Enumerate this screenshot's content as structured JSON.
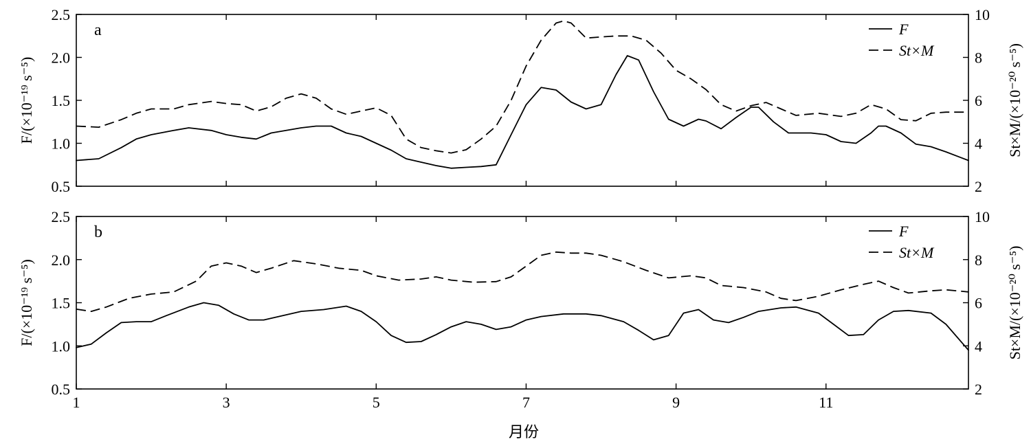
{
  "chart_data": [
    {
      "type": "line",
      "panel_label": "a",
      "xlim": [
        1,
        12.9
      ],
      "xticks": [
        1,
        3,
        5,
        7,
        9,
        11
      ],
      "ylabel": "F/(×10⁻¹⁹ s⁻⁵)",
      "ylim": [
        0.5,
        2.5
      ],
      "yticks": [
        "0.5",
        "1.0",
        "1.5",
        "2.0",
        "2.5"
      ],
      "y2label": "St×M/(×10⁻²⁰ s⁻⁵)",
      "y2lim": [
        2,
        10
      ],
      "y2ticks": [
        "2",
        "4",
        "6",
        "8",
        "10"
      ],
      "legend": {
        "position": "top-right",
        "entries": [
          "F",
          "St×M"
        ]
      },
      "series": [
        {
          "name": "F",
          "axis": "left",
          "style": "solid",
          "points": [
            [
              1.0,
              0.8
            ],
            [
              1.3,
              0.82
            ],
            [
              1.6,
              0.95
            ],
            [
              1.8,
              1.05
            ],
            [
              2.0,
              1.1
            ],
            [
              2.3,
              1.15
            ],
            [
              2.5,
              1.18
            ],
            [
              2.8,
              1.15
            ],
            [
              3.0,
              1.1
            ],
            [
              3.2,
              1.07
            ],
            [
              3.4,
              1.05
            ],
            [
              3.6,
              1.12
            ],
            [
              3.8,
              1.15
            ],
            [
              4.0,
              1.18
            ],
            [
              4.2,
              1.2
            ],
            [
              4.4,
              1.2
            ],
            [
              4.6,
              1.12
            ],
            [
              4.8,
              1.08
            ],
            [
              5.0,
              1.0
            ],
            [
              5.2,
              0.92
            ],
            [
              5.4,
              0.82
            ],
            [
              5.6,
              0.78
            ],
            [
              5.8,
              0.74
            ],
            [
              6.0,
              0.71
            ],
            [
              6.2,
              0.72
            ],
            [
              6.4,
              0.73
            ],
            [
              6.6,
              0.75
            ],
            [
              6.8,
              1.1
            ],
            [
              7.0,
              1.45
            ],
            [
              7.2,
              1.65
            ],
            [
              7.4,
              1.62
            ],
            [
              7.6,
              1.48
            ],
            [
              7.8,
              1.4
            ],
            [
              8.0,
              1.45
            ],
            [
              8.2,
              1.8
            ],
            [
              8.35,
              2.02
            ],
            [
              8.5,
              1.97
            ],
            [
              8.7,
              1.6
            ],
            [
              8.9,
              1.28
            ],
            [
              9.1,
              1.2
            ],
            [
              9.3,
              1.28
            ],
            [
              9.4,
              1.26
            ],
            [
              9.6,
              1.17
            ],
            [
              9.8,
              1.3
            ],
            [
              10.0,
              1.42
            ],
            [
              10.1,
              1.42
            ],
            [
              10.3,
              1.25
            ],
            [
              10.5,
              1.12
            ],
            [
              10.8,
              1.12
            ],
            [
              11.0,
              1.1
            ],
            [
              11.2,
              1.02
            ],
            [
              11.4,
              1.0
            ],
            [
              11.6,
              1.12
            ],
            [
              11.7,
              1.2
            ],
            [
              11.8,
              1.2
            ],
            [
              12.0,
              1.12
            ],
            [
              12.2,
              0.99
            ],
            [
              12.4,
              0.96
            ],
            [
              12.6,
              0.9
            ],
            [
              12.9,
              0.8
            ]
          ]
        },
        {
          "name": "St×M",
          "axis": "right",
          "style": "dashed",
          "points": [
            [
              1.0,
              4.8
            ],
            [
              1.3,
              4.75
            ],
            [
              1.6,
              5.1
            ],
            [
              1.8,
              5.4
            ],
            [
              2.0,
              5.6
            ],
            [
              2.3,
              5.6
            ],
            [
              2.5,
              5.8
            ],
            [
              2.8,
              5.95
            ],
            [
              3.0,
              5.85
            ],
            [
              3.2,
              5.8
            ],
            [
              3.4,
              5.5
            ],
            [
              3.6,
              5.7
            ],
            [
              3.8,
              6.1
            ],
            [
              4.0,
              6.3
            ],
            [
              4.2,
              6.1
            ],
            [
              4.4,
              5.6
            ],
            [
              4.6,
              5.35
            ],
            [
              4.8,
              5.5
            ],
            [
              5.0,
              5.65
            ],
            [
              5.2,
              5.3
            ],
            [
              5.4,
              4.2
            ],
            [
              5.6,
              3.8
            ],
            [
              5.8,
              3.65
            ],
            [
              6.0,
              3.55
            ],
            [
              6.2,
              3.7
            ],
            [
              6.4,
              4.2
            ],
            [
              6.6,
              4.8
            ],
            [
              6.8,
              6.0
            ],
            [
              7.0,
              7.6
            ],
            [
              7.2,
              8.8
            ],
            [
              7.4,
              9.6
            ],
            [
              7.5,
              9.7
            ],
            [
              7.6,
              9.6
            ],
            [
              7.8,
              8.9
            ],
            [
              8.0,
              8.95
            ],
            [
              8.2,
              9.0
            ],
            [
              8.4,
              9.0
            ],
            [
              8.6,
              8.8
            ],
            [
              8.8,
              8.2
            ],
            [
              9.0,
              7.4
            ],
            [
              9.2,
              7.0
            ],
            [
              9.4,
              6.5
            ],
            [
              9.6,
              5.8
            ],
            [
              9.8,
              5.5
            ],
            [
              10.0,
              5.75
            ],
            [
              10.2,
              5.9
            ],
            [
              10.4,
              5.6
            ],
            [
              10.6,
              5.3
            ],
            [
              10.9,
              5.4
            ],
            [
              11.2,
              5.25
            ],
            [
              11.4,
              5.4
            ],
            [
              11.6,
              5.8
            ],
            [
              11.8,
              5.6
            ],
            [
              12.0,
              5.1
            ],
            [
              12.2,
              5.05
            ],
            [
              12.4,
              5.4
            ],
            [
              12.6,
              5.45
            ],
            [
              12.9,
              5.45
            ]
          ]
        }
      ]
    },
    {
      "type": "line",
      "panel_label": "b",
      "xlabel": "月份",
      "xlim": [
        1,
        12.9
      ],
      "xticks": [
        1,
        3,
        5,
        7,
        9,
        11
      ],
      "ylabel": "F/(×10⁻¹⁹ s⁻⁵)",
      "ylim": [
        0.5,
        2.5
      ],
      "yticks": [
        "0.5",
        "1.0",
        "1.5",
        "2.0",
        "2.5"
      ],
      "y2label": "St×M/(×10⁻²⁰ s⁻⁵)",
      "y2lim": [
        2,
        10
      ],
      "y2ticks": [
        "2",
        "4",
        "6",
        "8",
        "10"
      ],
      "legend": {
        "position": "top-right",
        "entries": [
          "F",
          "St×M"
        ]
      },
      "series": [
        {
          "name": "F",
          "axis": "left",
          "style": "solid",
          "points": [
            [
              1.0,
              0.98
            ],
            [
              1.2,
              1.02
            ],
            [
              1.4,
              1.15
            ],
            [
              1.6,
              1.27
            ],
            [
              1.8,
              1.28
            ],
            [
              2.0,
              1.28
            ],
            [
              2.2,
              1.35
            ],
            [
              2.5,
              1.45
            ],
            [
              2.7,
              1.5
            ],
            [
              2.9,
              1.47
            ],
            [
              3.1,
              1.37
            ],
            [
              3.3,
              1.3
            ],
            [
              3.5,
              1.3
            ],
            [
              3.8,
              1.36
            ],
            [
              4.0,
              1.4
            ],
            [
              4.3,
              1.42
            ],
            [
              4.6,
              1.46
            ],
            [
              4.8,
              1.4
            ],
            [
              5.0,
              1.28
            ],
            [
              5.2,
              1.12
            ],
            [
              5.4,
              1.04
            ],
            [
              5.6,
              1.05
            ],
            [
              5.8,
              1.13
            ],
            [
              6.0,
              1.22
            ],
            [
              6.2,
              1.28
            ],
            [
              6.4,
              1.25
            ],
            [
              6.6,
              1.19
            ],
            [
              6.8,
              1.22
            ],
            [
              7.0,
              1.3
            ],
            [
              7.2,
              1.34
            ],
            [
              7.5,
              1.37
            ],
            [
              7.8,
              1.37
            ],
            [
              8.0,
              1.35
            ],
            [
              8.3,
              1.28
            ],
            [
              8.5,
              1.18
            ],
            [
              8.7,
              1.07
            ],
            [
              8.9,
              1.12
            ],
            [
              9.1,
              1.38
            ],
            [
              9.3,
              1.42
            ],
            [
              9.5,
              1.3
            ],
            [
              9.7,
              1.27
            ],
            [
              9.9,
              1.33
            ],
            [
              10.1,
              1.4
            ],
            [
              10.4,
              1.44
            ],
            [
              10.6,
              1.45
            ],
            [
              10.9,
              1.38
            ],
            [
              11.1,
              1.25
            ],
            [
              11.3,
              1.12
            ],
            [
              11.5,
              1.13
            ],
            [
              11.7,
              1.3
            ],
            [
              11.9,
              1.4
            ],
            [
              12.1,
              1.41
            ],
            [
              12.4,
              1.38
            ],
            [
              12.6,
              1.25
            ],
            [
              12.9,
              0.95
            ]
          ]
        },
        {
          "name": "St×M",
          "axis": "right",
          "style": "dashed",
          "points": [
            [
              1.0,
              5.7
            ],
            [
              1.2,
              5.6
            ],
            [
              1.4,
              5.8
            ],
            [
              1.7,
              6.2
            ],
            [
              2.0,
              6.4
            ],
            [
              2.3,
              6.5
            ],
            [
              2.6,
              7.0
            ],
            [
              2.8,
              7.7
            ],
            [
              3.0,
              7.85
            ],
            [
              3.2,
              7.7
            ],
            [
              3.4,
              7.4
            ],
            [
              3.6,
              7.6
            ],
            [
              3.9,
              7.95
            ],
            [
              4.2,
              7.8
            ],
            [
              4.5,
              7.6
            ],
            [
              4.8,
              7.5
            ],
            [
              5.0,
              7.25
            ],
            [
              5.3,
              7.05
            ],
            [
              5.6,
              7.1
            ],
            [
              5.8,
              7.2
            ],
            [
              6.0,
              7.05
            ],
            [
              6.3,
              6.95
            ],
            [
              6.6,
              6.98
            ],
            [
              6.8,
              7.2
            ],
            [
              7.0,
              7.7
            ],
            [
              7.2,
              8.2
            ],
            [
              7.4,
              8.35
            ],
            [
              7.6,
              8.3
            ],
            [
              7.8,
              8.3
            ],
            [
              8.0,
              8.2
            ],
            [
              8.3,
              7.9
            ],
            [
              8.6,
              7.5
            ],
            [
              8.9,
              7.15
            ],
            [
              9.2,
              7.25
            ],
            [
              9.4,
              7.15
            ],
            [
              9.6,
              6.8
            ],
            [
              9.9,
              6.7
            ],
            [
              10.2,
              6.5
            ],
            [
              10.4,
              6.2
            ],
            [
              10.6,
              6.1
            ],
            [
              10.9,
              6.3
            ],
            [
              11.2,
              6.6
            ],
            [
              11.5,
              6.85
            ],
            [
              11.7,
              7.0
            ],
            [
              11.9,
              6.7
            ],
            [
              12.1,
              6.45
            ],
            [
              12.4,
              6.55
            ],
            [
              12.6,
              6.6
            ],
            [
              12.9,
              6.5
            ]
          ]
        }
      ]
    }
  ]
}
